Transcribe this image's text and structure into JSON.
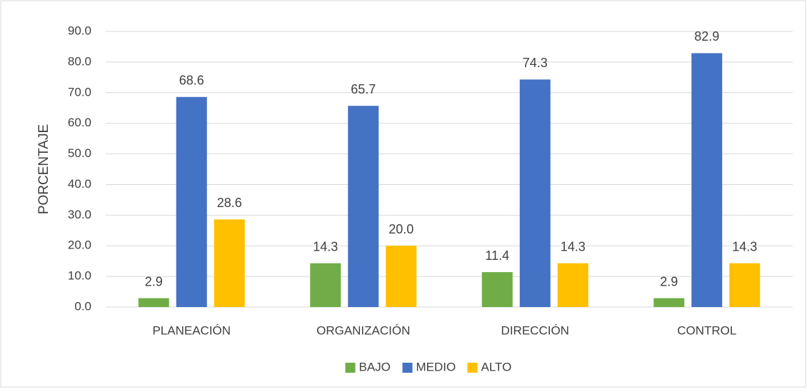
{
  "chart_data": {
    "type": "bar",
    "y_label": "PORCENTAJE",
    "categories": [
      "PLANEACIÓN",
      "ORGANIZACIÓN",
      "DIRECCIÓN",
      "CONTROL"
    ],
    "series": [
      {
        "name": "BAJO",
        "color": "#70ad47",
        "values": [
          2.9,
          14.3,
          11.4,
          2.9
        ],
        "value_labels": [
          "2.9",
          "14.3",
          "11.4",
          "2.9"
        ]
      },
      {
        "name": "MEDIO",
        "color": "#4472c4",
        "values": [
          68.6,
          65.7,
          74.3,
          82.9
        ],
        "value_labels": [
          "68.6",
          "65.7",
          "74.3",
          "82.9"
        ]
      },
      {
        "name": "ALTO",
        "color": "#ffc000",
        "values": [
          28.6,
          20.0,
          14.3,
          14.3
        ],
        "value_labels": [
          "28.6",
          "20.0",
          "14.3",
          "14.3"
        ]
      }
    ],
    "ylim": [
      0,
      90
    ],
    "yticks": [
      {
        "value": 0,
        "label": "0.0"
      },
      {
        "value": 10,
        "label": "10.0"
      },
      {
        "value": 20,
        "label": "20.0"
      },
      {
        "value": 30,
        "label": "30.0"
      },
      {
        "value": 40,
        "label": "40.0"
      },
      {
        "value": 50,
        "label": "50.0"
      },
      {
        "value": 60,
        "label": "60.0"
      },
      {
        "value": 70,
        "label": "70.0"
      },
      {
        "value": 80,
        "label": "80.0"
      },
      {
        "value": 90,
        "label": "90.0"
      }
    ],
    "grid": true,
    "legend": "bottom"
  }
}
